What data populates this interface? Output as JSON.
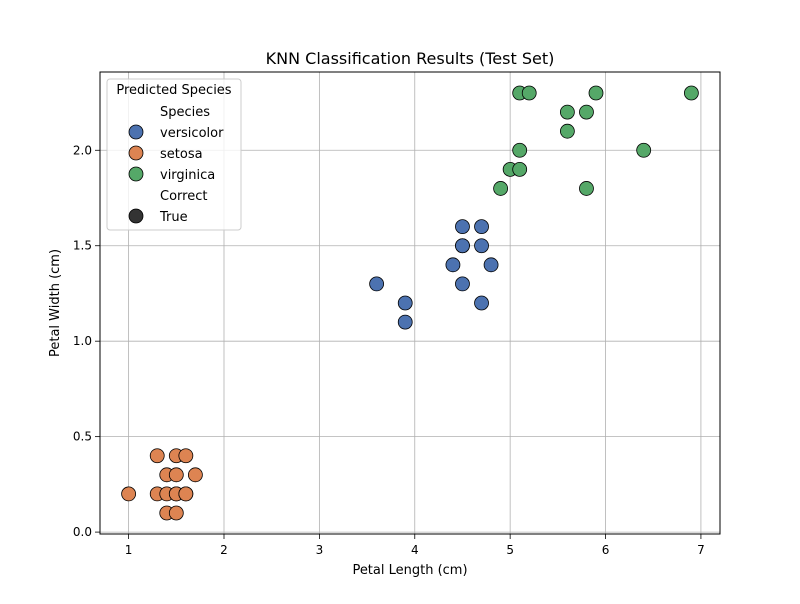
{
  "chart_data": {
    "type": "scatter",
    "title": "KNN Classification Results (Test Set)",
    "xlabel": "Petal Length (cm)",
    "ylabel": "Petal Width (cm)",
    "xlim": [
      0.7,
      7.2
    ],
    "ylim": [
      -0.01,
      2.41
    ],
    "xticks": [
      1,
      2,
      3,
      4,
      5,
      6,
      7
    ],
    "xtick_labels": [
      "1",
      "2",
      "3",
      "4",
      "5",
      "6",
      "7"
    ],
    "yticks": [
      0.0,
      0.5,
      1.0,
      1.5,
      2.0
    ],
    "ytick_labels": [
      "0.0",
      "0.5",
      "1.0",
      "1.5",
      "2.0"
    ],
    "grid": true,
    "legend": {
      "placement": "upper-left",
      "title": "Predicted Species",
      "hue_heading": "Species",
      "style_heading": "Correct",
      "style_entry": {
        "label": "True",
        "color": "#333333"
      }
    },
    "series": [
      {
        "name": "versicolor",
        "color": "#4c72b0",
        "x": [
          3.6,
          3.9,
          3.9,
          4.4,
          4.5,
          4.5,
          4.5,
          4.5,
          4.7,
          4.7,
          4.7,
          4.8
        ],
        "y": [
          1.3,
          1.2,
          1.1,
          1.4,
          1.6,
          1.5,
          1.5,
          1.3,
          1.6,
          1.5,
          1.2,
          1.4
        ]
      },
      {
        "name": "setosa",
        "color": "#dd8452",
        "x": [
          1.0,
          1.3,
          1.3,
          1.4,
          1.4,
          1.4,
          1.5,
          1.5,
          1.5,
          1.5,
          1.5,
          1.6,
          1.6,
          1.6,
          1.7
        ],
        "y": [
          0.2,
          0.2,
          0.4,
          0.1,
          0.2,
          0.3,
          0.1,
          0.2,
          0.2,
          0.3,
          0.4,
          0.2,
          0.2,
          0.4,
          0.3
        ]
      },
      {
        "name": "virginica",
        "color": "#55a868",
        "x": [
          4.9,
          5.0,
          5.1,
          5.1,
          5.1,
          5.2,
          5.6,
          5.6,
          5.8,
          5.8,
          5.9,
          6.4,
          6.9
        ],
        "y": [
          1.8,
          1.9,
          1.9,
          2.0,
          2.3,
          2.3,
          2.2,
          2.1,
          2.2,
          1.8,
          2.3,
          2.0,
          2.3
        ]
      }
    ]
  }
}
